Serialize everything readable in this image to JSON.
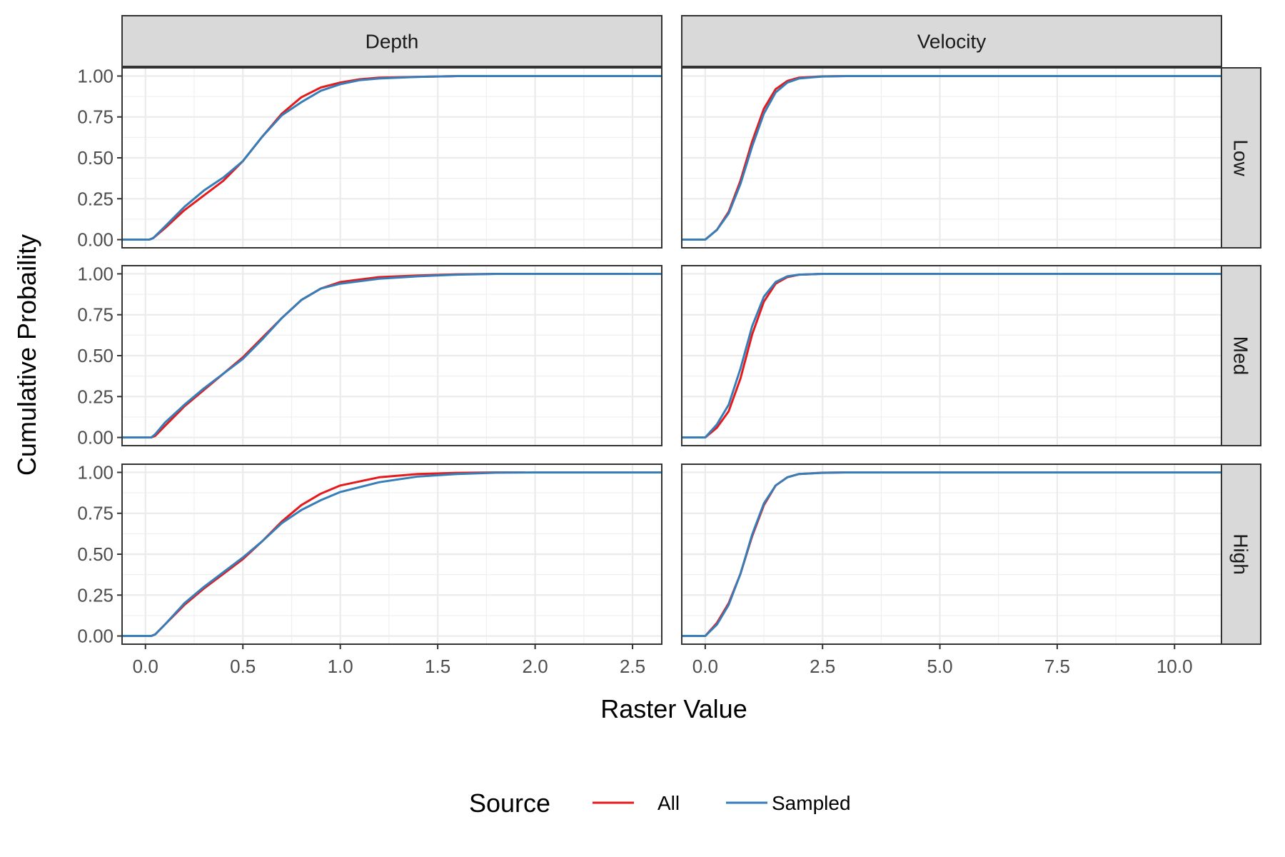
{
  "chart_data": {
    "type": "line",
    "xlabel": "Raster Value",
    "ylabel": "Cumulative Probaility",
    "y_ticks": [
      "0.00",
      "0.25",
      "0.50",
      "0.75",
      "1.00"
    ],
    "grid": true,
    "legend": {
      "title": "Source",
      "placement": "bottom",
      "entries": [
        {
          "name": "All",
          "color": "#e41a1c"
        },
        {
          "name": "Sampled",
          "color": "#377eb8"
        }
      ]
    },
    "columns": [
      {
        "label": "Depth",
        "xlim": [
          -0.12,
          2.65
        ],
        "x_ticks": [
          "0.0",
          "0.5",
          "1.0",
          "1.5",
          "2.0",
          "2.5"
        ],
        "x_tick_values": [
          0,
          0.5,
          1.0,
          1.5,
          2.0,
          2.5
        ]
      },
      {
        "label": "Velocity",
        "xlim": [
          -0.5,
          11.0
        ],
        "x_ticks": [
          "0.0",
          "2.5",
          "5.0",
          "7.5",
          "10.0"
        ],
        "x_tick_values": [
          0,
          2.5,
          5.0,
          7.5,
          10.0
        ]
      }
    ],
    "rows": [
      {
        "label": "Low"
      },
      {
        "label": "Med"
      },
      {
        "label": "High"
      }
    ],
    "panels": [
      {
        "row": "Low",
        "col": "Depth",
        "series": [
          {
            "name": "All",
            "x": [
              -0.12,
              0.02,
              0.04,
              0.1,
              0.2,
              0.3,
              0.4,
              0.5,
              0.6,
              0.7,
              0.8,
              0.9,
              1.0,
              1.1,
              1.2,
              1.4,
              1.6,
              1.85
            ],
            "y": [
              0,
              0,
              0.01,
              0.07,
              0.18,
              0.27,
              0.36,
              0.48,
              0.63,
              0.77,
              0.87,
              0.93,
              0.96,
              0.98,
              0.99,
              0.995,
              1.0,
              1.0
            ]
          },
          {
            "name": "Sampled",
            "x": [
              -0.12,
              0.02,
              0.04,
              0.1,
              0.2,
              0.3,
              0.4,
              0.5,
              0.6,
              0.7,
              0.8,
              0.9,
              1.0,
              1.1,
              1.2,
              1.4,
              1.6,
              2.0,
              2.65
            ],
            "y": [
              0,
              0,
              0.01,
              0.08,
              0.2,
              0.3,
              0.38,
              0.48,
              0.63,
              0.76,
              0.84,
              0.91,
              0.95,
              0.975,
              0.985,
              0.995,
              1.0,
              1.0,
              1.0
            ]
          }
        ]
      },
      {
        "row": "Low",
        "col": "Velocity",
        "series": [
          {
            "name": "All",
            "x": [
              -0.5,
              0.0,
              0.25,
              0.5,
              0.75,
              1.0,
              1.25,
              1.5,
              1.75,
              2.0,
              2.5,
              3.0,
              3.5
            ],
            "y": [
              0,
              0,
              0.06,
              0.17,
              0.36,
              0.6,
              0.8,
              0.92,
              0.97,
              0.99,
              0.998,
              1.0,
              1.0
            ]
          },
          {
            "name": "Sampled",
            "x": [
              -0.5,
              0.0,
              0.25,
              0.5,
              0.75,
              1.0,
              1.25,
              1.5,
              1.75,
              2.0,
              2.5,
              3.0,
              11.0
            ],
            "y": [
              0,
              0,
              0.06,
              0.16,
              0.34,
              0.57,
              0.77,
              0.9,
              0.96,
              0.985,
              0.997,
              1.0,
              1.0
            ]
          }
        ]
      },
      {
        "row": "Med",
        "col": "Depth",
        "series": [
          {
            "name": "All",
            "x": [
              -0.12,
              0.03,
              0.05,
              0.1,
              0.2,
              0.3,
              0.4,
              0.5,
              0.6,
              0.7,
              0.8,
              0.9,
              1.0,
              1.2,
              1.4,
              1.6,
              1.8,
              2.0
            ],
            "y": [
              0,
              0,
              0.01,
              0.07,
              0.19,
              0.29,
              0.39,
              0.49,
              0.61,
              0.73,
              0.84,
              0.91,
              0.95,
              0.98,
              0.99,
              0.997,
              1.0,
              1.0
            ]
          },
          {
            "name": "Sampled",
            "x": [
              -0.12,
              0.03,
              0.05,
              0.1,
              0.2,
              0.3,
              0.4,
              0.5,
              0.6,
              0.7,
              0.8,
              0.9,
              1.0,
              1.2,
              1.4,
              1.6,
              1.8,
              2.0,
              2.65
            ],
            "y": [
              0,
              0,
              0.02,
              0.09,
              0.2,
              0.3,
              0.39,
              0.48,
              0.6,
              0.73,
              0.84,
              0.91,
              0.94,
              0.97,
              0.985,
              0.995,
              1.0,
              1.0,
              1.0
            ]
          }
        ]
      },
      {
        "row": "Med",
        "col": "Velocity",
        "series": [
          {
            "name": "All",
            "x": [
              -0.5,
              0.0,
              0.25,
              0.5,
              0.75,
              1.0,
              1.25,
              1.5,
              1.75,
              2.0,
              2.5,
              3.0
            ],
            "y": [
              0,
              0,
              0.06,
              0.16,
              0.36,
              0.63,
              0.83,
              0.94,
              0.98,
              0.995,
              1.0,
              1.0
            ]
          },
          {
            "name": "Sampled",
            "x": [
              -0.5,
              0.0,
              0.25,
              0.5,
              0.75,
              1.0,
              1.25,
              1.5,
              1.75,
              2.0,
              2.5,
              3.0,
              11.0
            ],
            "y": [
              0,
              0,
              0.08,
              0.2,
              0.42,
              0.68,
              0.86,
              0.95,
              0.985,
              0.995,
              1.0,
              1.0,
              1.0
            ]
          }
        ]
      },
      {
        "row": "High",
        "col": "Depth",
        "series": [
          {
            "name": "All",
            "x": [
              -0.12,
              0.03,
              0.05,
              0.1,
              0.2,
              0.3,
              0.4,
              0.5,
              0.6,
              0.7,
              0.8,
              0.9,
              1.0,
              1.2,
              1.4,
              1.6,
              1.8,
              1.95
            ],
            "y": [
              0,
              0,
              0.01,
              0.07,
              0.19,
              0.29,
              0.38,
              0.47,
              0.58,
              0.7,
              0.8,
              0.87,
              0.92,
              0.97,
              0.99,
              0.997,
              1.0,
              1.0
            ]
          },
          {
            "name": "Sampled",
            "x": [
              -0.12,
              0.03,
              0.05,
              0.1,
              0.2,
              0.3,
              0.4,
              0.5,
              0.6,
              0.7,
              0.8,
              0.9,
              1.0,
              1.2,
              1.4,
              1.6,
              1.8,
              2.0,
              2.65
            ],
            "y": [
              0,
              0,
              0.01,
              0.07,
              0.2,
              0.3,
              0.39,
              0.48,
              0.58,
              0.69,
              0.77,
              0.83,
              0.88,
              0.94,
              0.975,
              0.99,
              0.998,
              1.0,
              1.0
            ]
          }
        ]
      },
      {
        "row": "High",
        "col": "Velocity",
        "series": [
          {
            "name": "All",
            "x": [
              -0.5,
              0.0,
              0.25,
              0.5,
              0.75,
              1.0,
              1.25,
              1.5,
              1.75,
              2.0,
              2.5,
              3.0,
              3.5
            ],
            "y": [
              0,
              0,
              0.08,
              0.2,
              0.38,
              0.61,
              0.8,
              0.92,
              0.97,
              0.99,
              0.998,
              1.0,
              1.0
            ]
          },
          {
            "name": "Sampled",
            "x": [
              -0.5,
              0.0,
              0.25,
              0.5,
              0.75,
              1.0,
              1.25,
              1.5,
              1.75,
              2.0,
              2.5,
              3.0,
              11.0
            ],
            "y": [
              0,
              0,
              0.07,
              0.19,
              0.38,
              0.62,
              0.81,
              0.92,
              0.97,
              0.99,
              0.997,
              1.0,
              1.0
            ]
          }
        ]
      }
    ]
  }
}
